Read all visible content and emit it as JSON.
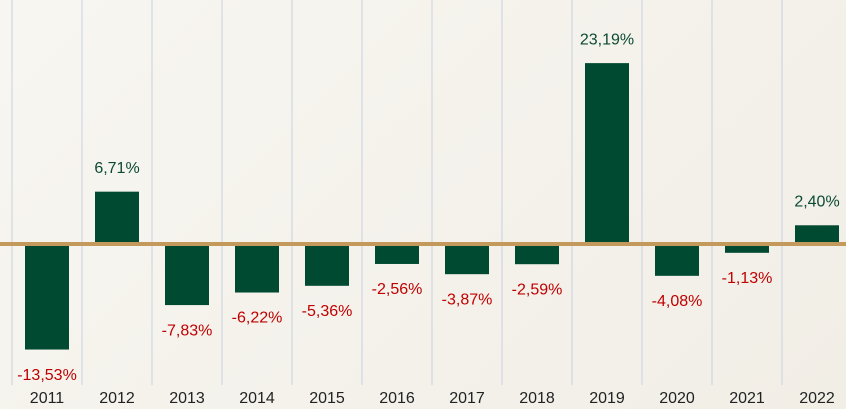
{
  "chart_data": {
    "type": "bar",
    "categories": [
      "2011",
      "2012",
      "2013",
      "2014",
      "2015",
      "2016",
      "2017",
      "2018",
      "2019",
      "2020",
      "2021",
      "2022"
    ],
    "values": [
      -13.53,
      6.71,
      -7.83,
      -6.22,
      -5.36,
      -2.56,
      -3.87,
      -2.59,
      23.19,
      -4.08,
      -1.13,
      2.4
    ],
    "value_labels": [
      "-13,53%",
      "6,71%",
      "-7,83%",
      "-6,22%",
      "-5,36%",
      "-2,56%",
      "-3,87%",
      "-2,59%",
      "23,19%",
      "-4,08%",
      "-1,13%",
      "2,40%"
    ],
    "color": "#004a32"
  }
}
